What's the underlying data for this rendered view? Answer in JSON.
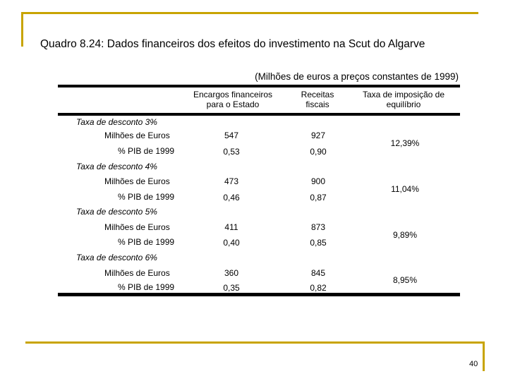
{
  "title": "Quadro 8.24: Dados financeiros dos efeitos do investimento na Scut do Algarve",
  "units_note": "(Milhões de euros a preços constantes de 1999)",
  "table": {
    "headers": {
      "encargos": [
        "Encargos financeiros",
        "para o Estado"
      ],
      "receitas": [
        "Receitas",
        "fiscais"
      ],
      "taxa": [
        "Taxa de imposição de",
        "equilíbrio"
      ]
    },
    "groups": [
      {
        "label": "Taxa de desconto 3%",
        "rows": [
          {
            "label": "Milhões de Euros",
            "encargos": "547",
            "receitas": "927"
          },
          {
            "label": "% PIB de 1999",
            "encargos": "0,53",
            "receitas": "0,90"
          }
        ],
        "taxa": "12,39%"
      },
      {
        "label": "Taxa de desconto 4%",
        "rows": [
          {
            "label": "Milhões de Euros",
            "encargos": "473",
            "receitas": "900"
          },
          {
            "label": "% PIB de 1999",
            "encargos": "0,46",
            "receitas": "0,87"
          }
        ],
        "taxa": "11,04%"
      },
      {
        "label": "Taxa de desconto 5%",
        "rows": [
          {
            "label": "Milhões de Euros",
            "encargos": "411",
            "receitas": "873"
          },
          {
            "label": "% PIB de 1999",
            "encargos": "0,40",
            "receitas": "0,85"
          }
        ],
        "taxa": "9,89%"
      },
      {
        "label": "Taxa de desconto 6%",
        "rows": [
          {
            "label": "Milhões de Euros",
            "encargos": "360",
            "receitas": "845"
          },
          {
            "label": "% PIB de 1999",
            "encargos": "0,35",
            "receitas": "0,82"
          }
        ],
        "taxa": "8,95%"
      }
    ]
  },
  "page_number": "40",
  "colors": {
    "accent": "#c8a400",
    "rule": "#000000"
  }
}
